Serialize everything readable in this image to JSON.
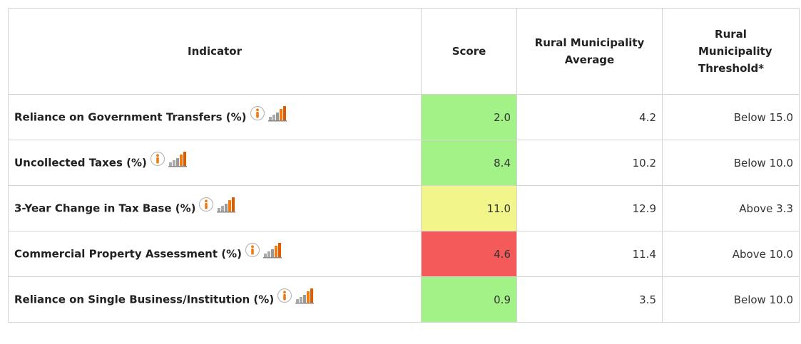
{
  "table": {
    "header": [
      "Indicator",
      "Score",
      "Rural Municipality Average",
      "Rural Municipality Threshold*"
    ],
    "rows": [
      {
        "indicator": "Reliance on Government Transfers (%)",
        "score": "2.0",
        "average": "4.2",
        "threshold": "Below 15.0",
        "color": "#a2f288"
      },
      {
        "indicator": "Uncollected Taxes (%)",
        "score": "8.4",
        "average": "10.2",
        "threshold": "Below 10.0",
        "color": "#a2f288"
      },
      {
        "indicator": "3-Year Change in Tax Base (%)",
        "score": "11.0",
        "average": "12.9",
        "threshold": "Above 3.3",
        "color": "#f2f58a"
      },
      {
        "indicator": "Commercial Property Assessment (%)",
        "score": "4.6",
        "average": "11.4",
        "threshold": "Above 10.0",
        "color": "#f55a5a"
      },
      {
        "indicator": "Reliance on Single Business/Institution (%)",
        "score": "0.9",
        "average": "3.5",
        "threshold": "Below 10.0",
        "color": "#a2f288"
      }
    ]
  }
}
